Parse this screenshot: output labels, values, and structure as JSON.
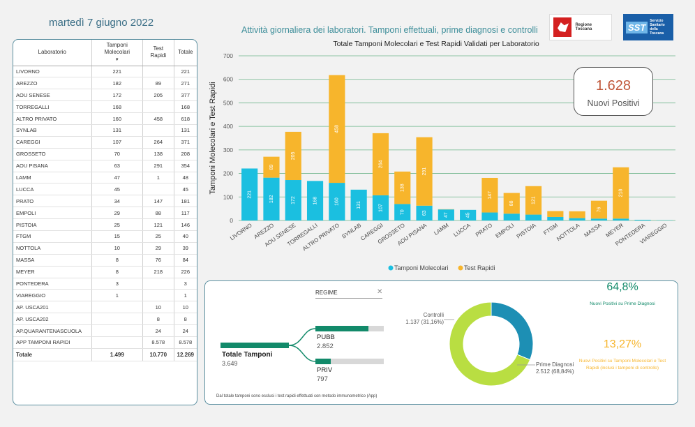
{
  "header": {
    "date": "martedì 7 giugno 2022",
    "title": "Attività giornaliera dei laboratori. Tamponi effettuali, prime diagnosi e controlli",
    "logo_rt_text": "Regione Toscana",
    "logo_sst_abbr": "SST",
    "logo_sst_text": "Servizio Sanitario della Toscana"
  },
  "lab_table": {
    "headers": [
      "Laboratorio",
      "Tamponi Molecolari",
      "Test Rapidi",
      "Totale"
    ],
    "rows": [
      [
        "LIVORNO",
        "221",
        "",
        "221"
      ],
      [
        "AREZZO",
        "182",
        "89",
        "271"
      ],
      [
        "AOU SENESE",
        "172",
        "205",
        "377"
      ],
      [
        "TORREGALLI",
        "168",
        "",
        "168"
      ],
      [
        "ALTRO PRIVATO",
        "160",
        "458",
        "618"
      ],
      [
        "SYNLAB",
        "131",
        "",
        "131"
      ],
      [
        "CAREGGI",
        "107",
        "264",
        "371"
      ],
      [
        "GROSSETO",
        "70",
        "138",
        "208"
      ],
      [
        "AOU PISANA",
        "63",
        "291",
        "354"
      ],
      [
        "LAMM",
        "47",
        "1",
        "48"
      ],
      [
        "LUCCA",
        "45",
        "",
        "45"
      ],
      [
        "PRATO",
        "34",
        "147",
        "181"
      ],
      [
        "EMPOLI",
        "29",
        "88",
        "117"
      ],
      [
        "PISTOIA",
        "25",
        "121",
        "146"
      ],
      [
        "FTGM",
        "15",
        "25",
        "40"
      ],
      [
        "NOTTOLA",
        "10",
        "29",
        "39"
      ],
      [
        "MASSA",
        "8",
        "76",
        "84"
      ],
      [
        "MEYER",
        "8",
        "218",
        "226"
      ],
      [
        "PONTEDERA",
        "3",
        "",
        "3"
      ],
      [
        "VIAREGGIO",
        "1",
        "",
        "1"
      ],
      [
        "AP. USCA201",
        "",
        "10",
        "10"
      ],
      [
        "AP. USCA202",
        "",
        "8",
        "8"
      ],
      [
        "AP.QUARANTENASCUOLA",
        "",
        "24",
        "24"
      ],
      [
        "APP TAMPONI RAPIDI",
        "",
        "8.578",
        "8.578"
      ]
    ],
    "total": [
      "Totale",
      "1.499",
      "10.770",
      "12.269"
    ]
  },
  "chart_data": {
    "type": "bar",
    "stacked": true,
    "title": "Totale Tamponi Molecolari e Test Rapidi Validati per Laboratorio",
    "ylabel": "Tamponi Molecolari e Test Rapidi",
    "xlabel": "",
    "ylim": [
      0,
      700
    ],
    "yticks": [
      0,
      100,
      200,
      300,
      400,
      500,
      600,
      700
    ],
    "grid": true,
    "legend_position": "bottom",
    "categories": [
      "LIVORNO",
      "AREZZO",
      "AOU SENESE",
      "TORREGALLI",
      "ALTRO PRIVATO",
      "SYNLAB",
      "CAREGGI",
      "GROSSETO",
      "AOU PISANA",
      "LAMM",
      "LUCCA",
      "PRATO",
      "EMPOLI",
      "PISTOIA",
      "FTGM",
      "NOTTOLA",
      "MASSA",
      "MEYER",
      "PONTEDERA",
      "VIAREGGIO"
    ],
    "series": [
      {
        "name": "Tamponi Molecolari",
        "color": "#1bbfe0",
        "values": [
          221,
          182,
          172,
          168,
          160,
          131,
          107,
          70,
          63,
          47,
          45,
          34,
          29,
          25,
          15,
          10,
          8,
          8,
          3,
          1
        ]
      },
      {
        "name": "Test Rapidi",
        "color": "#f7b52c",
        "values": [
          0,
          89,
          205,
          0,
          458,
          0,
          264,
          138,
          291,
          1,
          0,
          147,
          88,
          121,
          25,
          29,
          76,
          218,
          0,
          0
        ]
      }
    ],
    "data_labels": {
      "Tamponi Molecolari": [
        "221",
        "182",
        "172",
        "168",
        "160",
        "131",
        "107",
        "70",
        "63",
        "47",
        "45",
        "",
        "",
        "",
        "",
        "",
        "",
        "",
        "",
        ""
      ],
      "Test Rapidi": [
        "",
        "89",
        "205",
        "",
        "458",
        "",
        "264",
        "138",
        "291",
        "",
        "",
        "147",
        "88",
        "121",
        "",
        "",
        "76",
        "218",
        "",
        ""
      ]
    }
  },
  "kpi": {
    "value": "1.628",
    "label": "Nuovi Positivi"
  },
  "regime": {
    "filter_label": "REGIME",
    "total_label": "Totale Tamponi",
    "total_value": "3.649",
    "pubb_label": "PUBB",
    "pubb_value": "2.852",
    "pubb_fraction": 0.78,
    "priv_label": "PRIV",
    "priv_value": "797",
    "priv_fraction": 0.22,
    "footnote": "Dal totale tamponi sono esclusi i test rapidi effettuati con metodo immunometrico (App)"
  },
  "donut": {
    "slices": [
      {
        "label": "Controlli",
        "value_text": "1.137 (31,16%)",
        "percent": 31.16,
        "color": "#1d8fb4"
      },
      {
        "label": "Prime Diagnosi",
        "value_text": "2.512 (68,84%)",
        "percent": 68.84,
        "color": "#b9de42"
      }
    ]
  },
  "stats": {
    "pct1": "64,8%",
    "pct1_label": "Nuovi Positivi su Prime Diagnosi",
    "pct1_color": "#128a6a",
    "pct2": "13,27%",
    "pct2_label": "Nuovi Positivi su Tamponi Molecolari e Test Rapidi (inclusi i tamponi di controllo)",
    "pct2_color": "#f7b52c"
  }
}
